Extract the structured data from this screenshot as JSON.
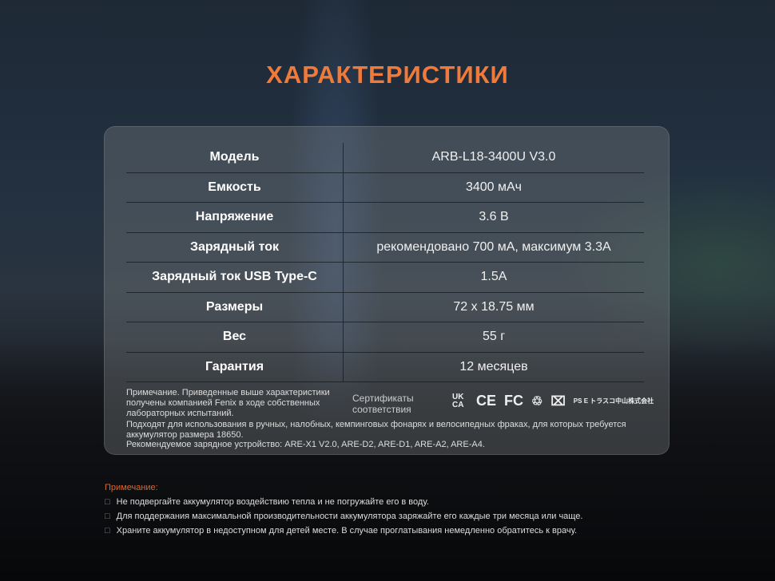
{
  "title": "ХАРАКТЕРИСТИКИ",
  "specs": [
    {
      "label": "Модель",
      "value": "ARB-L18-3400U V3.0"
    },
    {
      "label": "Емкость",
      "value": "3400 мАч"
    },
    {
      "label": "Напряжение",
      "value": "3.6 В"
    },
    {
      "label": "Зарядный ток",
      "value": "рекомендовано 700 мА, максимум 3.3А"
    },
    {
      "label": "Зарядный ток USB Type-C",
      "value": "1.5A"
    },
    {
      "label": "Размеры",
      "value": "72 x 18.75 мм"
    },
    {
      "label": "Вес",
      "value": "55 г"
    },
    {
      "label": "Гарантия",
      "value": "12 месяцев"
    }
  ],
  "note": "Примечание. Приведенные выше характеристики получены компанией Fenix в ходе собственных лабораторных испытаний.",
  "certificates_label": "Сертификаты соответствия",
  "cert_icons": [
    "UK CA",
    "CE",
    "FC",
    "recycle",
    "weee-bin",
    "PS E トラスコ中山株式会社"
  ],
  "usage": "Подходят для использования в ручных, налобных, кемпинговых фонарях и велосипедных фраках, для которых требуется аккумулятор размера 18650.",
  "charger": "Рекомендуемое зарядное устройство: ARE-X1 V2.0, ARE-D2, ARE-D1, ARE-A2, ARE-A4.",
  "bottom": {
    "title": "Примечание:",
    "items": [
      "Не подвергайте аккумулятор воздействию тепла и не погружайте его в воду.",
      "Для поддержания максимальной производительности аккумулятора заряжайте его каждые три месяца или чаще.",
      "Храните аккумулятор в недоступном для детей месте. В случае проглатывания немедленно обратитесь к врачу."
    ]
  },
  "colors": {
    "accent": "#f07a3a"
  }
}
